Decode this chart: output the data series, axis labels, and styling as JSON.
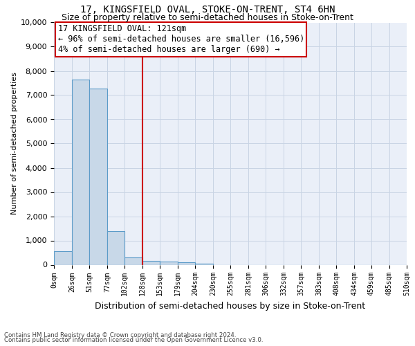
{
  "title": "17, KINGSFIELD OVAL, STOKE-ON-TRENT, ST4 6HN",
  "subtitle": "Size of property relative to semi-detached houses in Stoke-on-Trent",
  "xlabel": "Distribution of semi-detached houses by size in Stoke-on-Trent",
  "ylabel": "Number of semi-detached properties",
  "footnote1": "Contains HM Land Registry data © Crown copyright and database right 2024.",
  "footnote2": "Contains public sector information licensed under the Open Government Licence v3.0.",
  "property_size": 121,
  "property_label": "17 KINGSFIELD OVAL: 121sqm",
  "pct_smaller": 96,
  "n_smaller": 16596,
  "pct_larger": 4,
  "n_larger": 690,
  "bin_edges": [
    0,
    26,
    51,
    77,
    102,
    128,
    153,
    179,
    204,
    230,
    255,
    281,
    306,
    332,
    357,
    383,
    408,
    434,
    459,
    485,
    510
  ],
  "bin_labels": [
    "0sqm",
    "26sqm",
    "51sqm",
    "77sqm",
    "102sqm",
    "128sqm",
    "153sqm",
    "179sqm",
    "204sqm",
    "230sqm",
    "255sqm",
    "281sqm",
    "306sqm",
    "332sqm",
    "357sqm",
    "383sqm",
    "408sqm",
    "434sqm",
    "459sqm",
    "485sqm",
    "510sqm"
  ],
  "bar_heights": [
    560,
    7650,
    7280,
    1380,
    310,
    165,
    120,
    100,
    55,
    0,
    0,
    0,
    0,
    0,
    0,
    0,
    0,
    0,
    0,
    0
  ],
  "bar_color": "#c8d8e8",
  "bar_edge_color": "#5b9bc8",
  "vline_x": 128,
  "vline_color": "#cc0000",
  "box_color": "#cc0000",
  "ylim": [
    0,
    10000
  ],
  "yticks": [
    0,
    1000,
    2000,
    3000,
    4000,
    5000,
    6000,
    7000,
    8000,
    9000,
    10000
  ],
  "grid_color": "#c8d4e4",
  "bg_color": "#eaeff8",
  "title_fontsize": 10,
  "subtitle_fontsize": 9,
  "annotation_fontsize": 8.5,
  "ylabel_fontsize": 8,
  "xlabel_fontsize": 9
}
